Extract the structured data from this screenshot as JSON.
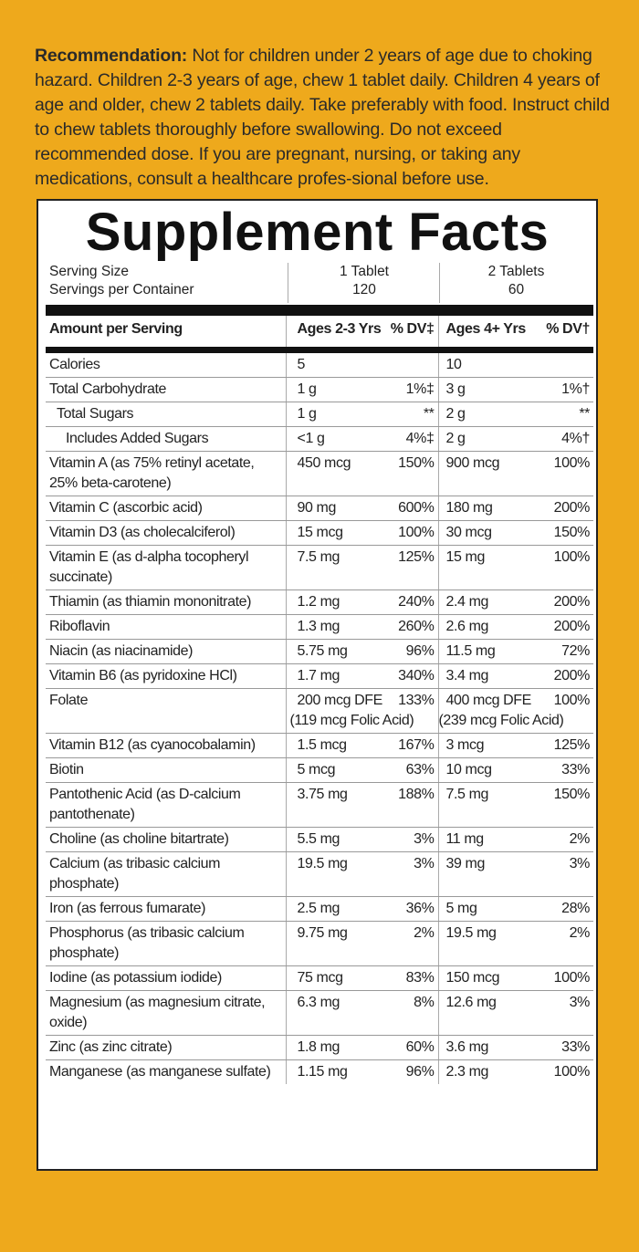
{
  "recommendation": {
    "label": "Recommendation:",
    "text": "Not for children under 2 years of age due to choking hazard. Children 2-3 years of age, chew 1 tablet daily. Children 4 years of age and older, chew 2 tablets daily. Take preferably with food. Instruct child to chew tablets thoroughly before swallowing. Do not exceed recommended dose. If you are pregnant, nursing, or taking any medications, consult a healthcare profes-sional before use."
  },
  "facts": {
    "title": "Supplement Facts",
    "serving_size_label": "Serving Size",
    "servings_label": "Servings per Container",
    "columns": [
      {
        "serving_size": "1 Tablet",
        "servings": 120
      },
      {
        "serving_size": "2 Tablets",
        "servings": 60
      }
    ],
    "header": [
      "Amount per Serving",
      "Ages 2-3 Yrs",
      "% DV‡",
      "Ages 4+ Yrs",
      "% DV†"
    ],
    "rows": [
      {
        "cells": [
          "Calories",
          5,
          "",
          10,
          ""
        ]
      },
      {
        "cells": [
          "Total Carbohydrate",
          "1 g",
          "1%‡",
          "3 g",
          "1%†"
        ]
      },
      {
        "cells": [
          "Total Sugars",
          "1 g",
          "**",
          "2 g",
          "**"
        ]
      },
      {
        "cells": [
          "Includes Added Sugars",
          "<1 g",
          "4%‡",
          "2 g",
          "4%†"
        ]
      },
      {
        "cells": [
          "Vitamin A (as 75% retinyl acetate, 25% beta-carotene)",
          "450 mcg",
          "150%",
          "900 mcg",
          "100%"
        ]
      },
      {
        "cells": [
          "Vitamin C (ascorbic acid)",
          "90 mg",
          "600%",
          "180 mg",
          "200%"
        ]
      },
      {
        "cells": [
          "Vitamin D3 (as cholecalciferol)",
          "15 mcg",
          "100%",
          "30 mcg",
          "150%"
        ]
      },
      {
        "cells": [
          "Vitamin E (as d-alpha tocopheryl succinate)",
          "7.5 mg",
          "125%",
          "15 mg",
          "100%"
        ]
      },
      {
        "cells": [
          "Thiamin (as thiamin mononitrate)",
          "1.2 mg",
          "240%",
          "2.4 mg",
          "200%"
        ]
      },
      {
        "cells": [
          "Riboflavin",
          "1.3 mg",
          "260%",
          "2.6 mg",
          "200%"
        ]
      },
      {
        "cells": [
          "Niacin (as niacinamide)",
          "5.75 mg",
          "96%",
          "11.5 mg",
          "72%"
        ]
      },
      {
        "cells": [
          "Vitamin B6 (as pyridoxine HCl)",
          "1.7 mg",
          "340%",
          "3.4 mg",
          "200%"
        ]
      },
      {
        "cells": [
          "Folate",
          "200 mcg DFE",
          "133%",
          "400 mcg DFE",
          "100%"
        ],
        "sub": [
          "(119 mcg Folic Acid)",
          "(239 mcg Folic Acid)"
        ]
      },
      {
        "cells": [
          "Vitamin B12 (as cyanocobalamin)",
          "1.5 mcg",
          "167%",
          "3 mcg",
          "125%"
        ]
      },
      {
        "cells": [
          "Biotin",
          "5 mcg",
          "63%",
          "10 mcg",
          "33%"
        ]
      },
      {
        "cells": [
          "Pantothenic Acid (as D-calcium pantothenate)",
          "3.75 mg",
          "188%",
          "7.5 mg",
          "150%"
        ]
      },
      {
        "cells": [
          "Choline (as choline bitartrate)",
          "5.5 mg",
          "3%",
          "11 mg",
          "2%"
        ]
      },
      {
        "cells": [
          "Calcium (as tribasic calcium phosphate)",
          "19.5 mg",
          "3%",
          "39 mg",
          "3%"
        ]
      },
      {
        "cells": [
          "Iron (as ferrous fumarate)",
          "2.5 mg",
          "36%",
          "5 mg",
          "28%"
        ]
      },
      {
        "cells": [
          "Phosphorus (as tribasic calcium phosphate)",
          "9.75 mg",
          "2%",
          "19.5 mg",
          "2%"
        ]
      },
      {
        "cells": [
          "Iodine (as potassium iodide)",
          "75 mcg",
          "83%",
          "150 mcg",
          "100%"
        ]
      },
      {
        "cells": [
          "Magnesium (as magnesium citrate, oxide)",
          "6.3 mg",
          "8%",
          "12.6 mg",
          "3%"
        ]
      },
      {
        "cells": [
          "Zinc (as zinc citrate)",
          "1.8 mg",
          "60%",
          "3.6 mg",
          "33%"
        ]
      },
      {
        "cells": [
          "Manganese (as manganese sulfate)",
          "1.15 mg",
          "96%",
          "2.3 mg",
          "100%"
        ]
      }
    ]
  }
}
